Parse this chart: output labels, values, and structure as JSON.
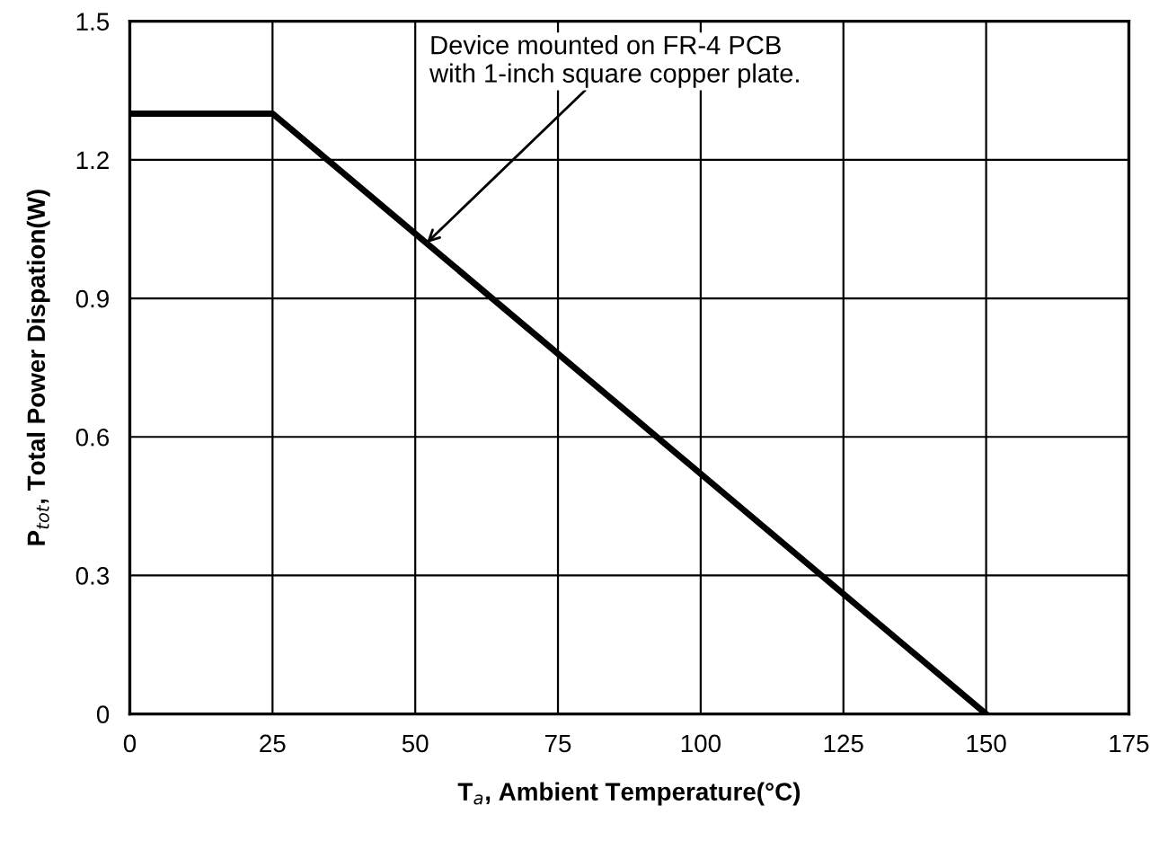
{
  "chart_data": {
    "type": "line",
    "xlabel": "T$_{a}$, Ambient Temperature(°C)",
    "ylabel": "P$_{tot}$, Total Power Dispation(W)",
    "x": [
      0,
      25,
      150
    ],
    "series": [
      {
        "color": "#000000",
        "values": [
          1.3,
          1.3,
          0
        ]
      }
    ],
    "xlim": [
      0,
      175
    ],
    "xticks": [
      0,
      25,
      50,
      75,
      100,
      125,
      150,
      175
    ],
    "ylim": [
      0,
      1.5
    ],
    "yticks": [
      0,
      0.3,
      0.6,
      0.9,
      1.2,
      1.5
    ],
    "grid": true,
    "marker": "none",
    "line_style": "solid",
    "annotations": [
      {
        "text": "Device mounted on FR-4 PCB\nwith 1-inch square copper plate.",
        "x": 52,
        "y": 1.02
      }
    ]
  }
}
